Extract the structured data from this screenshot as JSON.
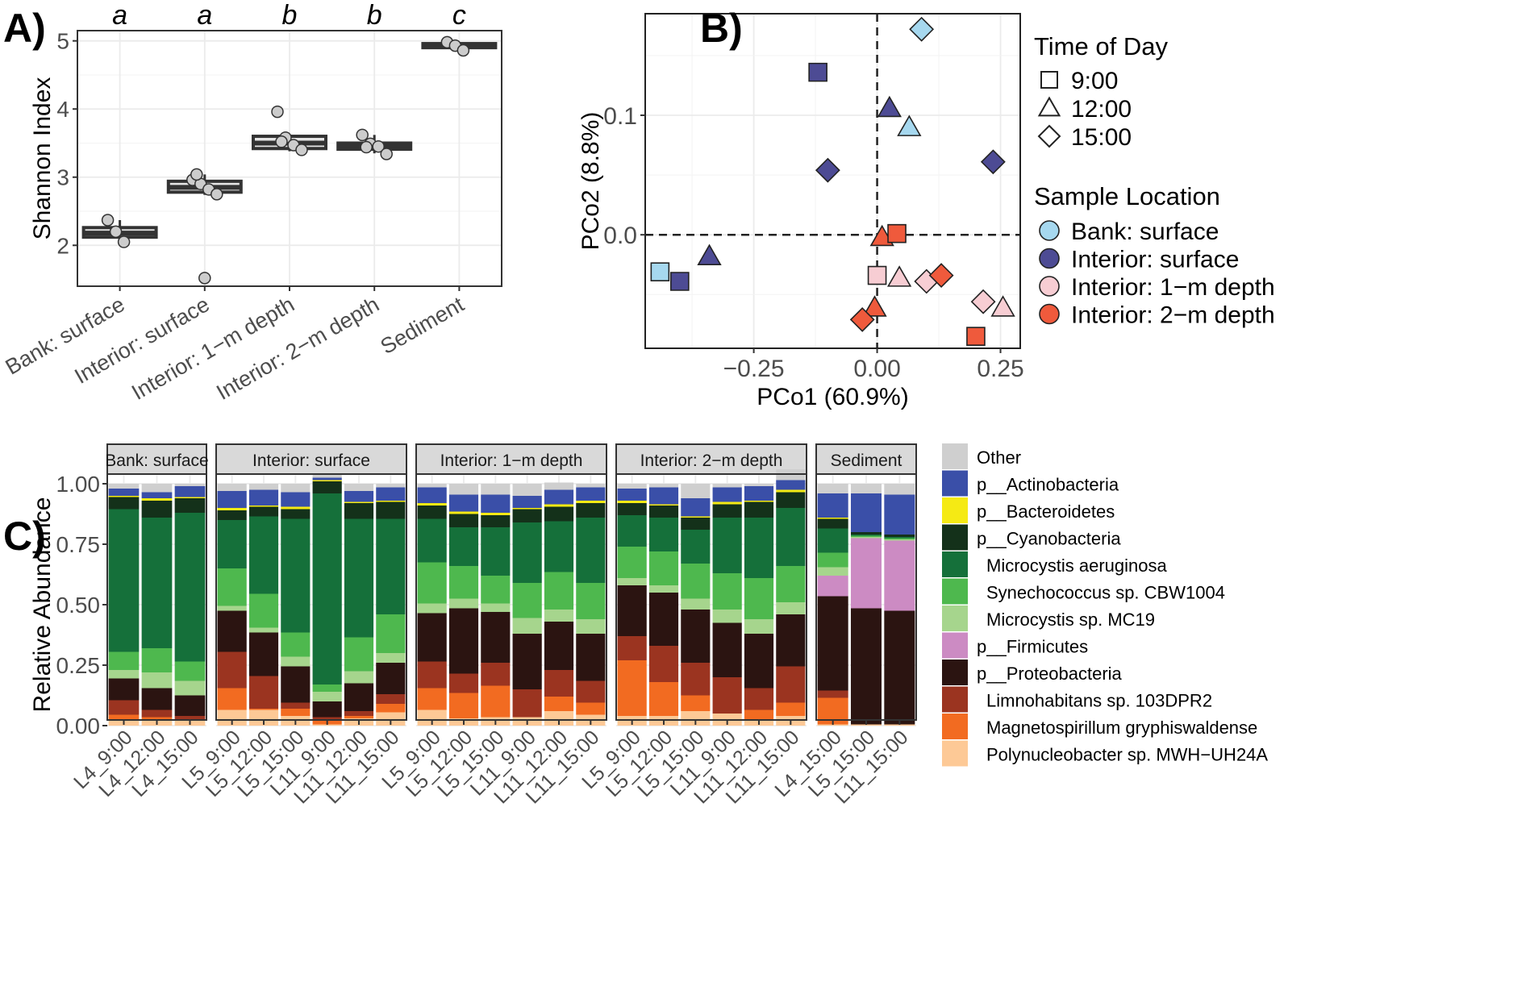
{
  "figure": {
    "panel_labels": [
      "A)",
      "B)",
      "C)"
    ]
  },
  "chart_data": [
    {
      "type": "box",
      "panel": "A)",
      "ylabel": "Shannon Index",
      "ylim": [
        1.4,
        5.15
      ],
      "yticks": [
        2,
        3,
        4,
        5
      ],
      "categories": [
        "Bank: surface",
        "Interior: surface",
        "Interior: 1−m depth",
        "Interior: 2−m depth",
        "Sediment"
      ],
      "letters": [
        "a",
        "a",
        "b",
        "b",
        "c"
      ],
      "boxes": [
        {
          "q1": 2.12,
          "median": 2.18,
          "q3": 2.26,
          "min": 2.05,
          "max": 2.37
        },
        {
          "q1": 2.78,
          "median": 2.85,
          "q3": 2.94,
          "min": 2.74,
          "max": 3.04
        },
        {
          "q1": 3.42,
          "median": 3.5,
          "q3": 3.6,
          "min": 3.38,
          "max": 3.62
        },
        {
          "q1": 3.41,
          "median": 3.46,
          "q3": 3.5,
          "min": 3.35,
          "max": 3.62
        },
        {
          "q1": 4.9,
          "median": 4.93,
          "q3": 4.96,
          "min": 4.88,
          "max": 4.98
        }
      ],
      "points": [
        [
          2.37,
          2.2,
          2.05
        ],
        [
          2.96,
          2.9,
          2.82,
          2.75,
          3.04,
          1.52
        ],
        [
          3.96,
          3.58,
          3.47,
          3.4,
          3.52
        ],
        [
          3.62,
          3.49,
          3.45,
          3.34,
          3.44
        ],
        [
          4.98,
          4.93,
          4.86
        ]
      ]
    },
    {
      "type": "scatter",
      "panel": "B)",
      "xlabel": "PCo1 (60.9%)",
      "ylabel": "PCo2 (8.8%)",
      "xlim": [
        -0.47,
        0.29
      ],
      "ylim": [
        -0.095,
        0.185
      ],
      "xticks": [
        -0.25,
        0.0,
        0.25
      ],
      "xtick_labels": [
        "−0.25",
        "0.00",
        "0.25"
      ],
      "yticks": [
        0.0,
        0.1
      ],
      "ytick_labels": [
        "0.0",
        "0.1"
      ],
      "legend_shape": {
        "title": "Time of Day",
        "entries": [
          {
            "label": "9:00",
            "shape": "square"
          },
          {
            "label": "12:00",
            "shape": "triangle"
          },
          {
            "label": "15:00",
            "shape": "diamond"
          }
        ]
      },
      "legend_color": {
        "title": "Sample Location",
        "entries": [
          {
            "label": "Bank: surface",
            "color": "#a6d8ef"
          },
          {
            "label": "Interior: surface",
            "color": "#4d4b94"
          },
          {
            "label": "Interior: 1−m depth",
            "color": "#f7cdd3"
          },
          {
            "label": "Interior: 2−m depth",
            "color": "#ef5a3c"
          }
        ]
      },
      "points": [
        {
          "x": 0.09,
          "y": 0.172,
          "shape": "diamond",
          "group": 0
        },
        {
          "x": -0.12,
          "y": 0.136,
          "shape": "square",
          "group": 1
        },
        {
          "x": 0.025,
          "y": 0.106,
          "shape": "triangle",
          "group": 1
        },
        {
          "x": 0.065,
          "y": 0.09,
          "shape": "triangle",
          "group": 0
        },
        {
          "x": -0.1,
          "y": 0.054,
          "shape": "diamond",
          "group": 1
        },
        {
          "x": 0.235,
          "y": 0.061,
          "shape": "diamond",
          "group": 1
        },
        {
          "x": 0.01,
          "y": -0.002,
          "shape": "triangle",
          "group": 3
        },
        {
          "x": 0.04,
          "y": 0.001,
          "shape": "square",
          "group": 3
        },
        {
          "x": -0.44,
          "y": -0.031,
          "shape": "square",
          "group": 0
        },
        {
          "x": -0.4,
          "y": -0.039,
          "shape": "square",
          "group": 1
        },
        {
          "x": -0.34,
          "y": -0.018,
          "shape": "triangle",
          "group": 1
        },
        {
          "x": 0.0,
          "y": -0.034,
          "shape": "square",
          "group": 2
        },
        {
          "x": 0.045,
          "y": -0.036,
          "shape": "triangle",
          "group": 2
        },
        {
          "x": 0.1,
          "y": -0.039,
          "shape": "diamond",
          "group": 2
        },
        {
          "x": 0.13,
          "y": -0.034,
          "shape": "diamond",
          "group": 3
        },
        {
          "x": 0.215,
          "y": -0.056,
          "shape": "diamond",
          "group": 2
        },
        {
          "x": 0.255,
          "y": -0.061,
          "shape": "triangle",
          "group": 2
        },
        {
          "x": -0.005,
          "y": -0.061,
          "shape": "triangle",
          "group": 3
        },
        {
          "x": -0.03,
          "y": -0.071,
          "shape": "diamond",
          "group": 3
        },
        {
          "x": 0.2,
          "y": -0.085,
          "shape": "square",
          "group": 3
        }
      ]
    },
    {
      "type": "stacked_bar",
      "panel": "C)",
      "ylabel": "Relative Abundance",
      "ylim": [
        0,
        1
      ],
      "yticks": [
        0,
        0.25,
        0.5,
        0.75,
        1.0
      ],
      "ytick_labels": [
        "0.00",
        "0.25",
        "0.50",
        "0.75",
        "1.00"
      ],
      "taxa": [
        {
          "name": "Polynucleobacter sp. MWH−UH24A",
          "color": "#fdc996",
          "indent": true
        },
        {
          "name": "Magnetospirillum gryphiswaldense",
          "color": "#f26b21",
          "indent": true
        },
        {
          "name": "Limnohabitans sp. 103DPR2",
          "color": "#9b3420",
          "indent": true
        },
        {
          "name": "p__Proteobacteria",
          "color": "#2b1411",
          "indent": false
        },
        {
          "name": "p__Firmicutes",
          "color": "#cc8bc3",
          "indent": false
        },
        {
          "name": "Microcystis sp. MC19",
          "color": "#a6d58d",
          "indent": true
        },
        {
          "name": "Synechococcus sp. CBW1004",
          "color": "#4eb84e",
          "indent": true
        },
        {
          "name": "Microcystis aeruginosa",
          "color": "#15703a",
          "indent": true
        },
        {
          "name": "p__Cyanobacteria",
          "color": "#14311a",
          "indent": false
        },
        {
          "name": "p__Bacteroidetes",
          "color": "#f5ea14",
          "indent": false
        },
        {
          "name": "p__Actinobacteria",
          "color": "#3a4fa8",
          "indent": false
        },
        {
          "name": "Other",
          "color": "#cfcfcf",
          "indent": false
        }
      ],
      "facets": [
        {
          "name": "Bank: surface",
          "samples": [
            {
              "label": "L4_9:00",
              "values": [
                0.025,
                0.02,
                0.06,
                0.09,
                0,
                0.035,
                0.075,
                0.59,
                0.05,
                0.005,
                0.03,
                0.02
              ]
            },
            {
              "label": "L4_12:00",
              "values": [
                0.02,
                0.015,
                0.03,
                0.09,
                0,
                0.065,
                0.1,
                0.54,
                0.07,
                0.01,
                0.025,
                0.035
              ]
            },
            {
              "label": "L4_15:00",
              "values": [
                0.02,
                0.005,
                0.015,
                0.085,
                0,
                0.06,
                0.08,
                0.615,
                0.06,
                0.005,
                0.045,
                0.01
              ]
            }
          ]
        },
        {
          "name": "Interior: surface",
          "samples": [
            {
              "label": "L5_9:00",
              "values": [
                0.065,
                0.09,
                0.15,
                0.17,
                0,
                0.02,
                0.155,
                0.2,
                0.04,
                0.01,
                0.07,
                0.03
              ]
            },
            {
              "label": "L5_12:00",
              "values": [
                0.065,
                0.005,
                0.135,
                0.18,
                0,
                0.02,
                0.14,
                0.32,
                0.04,
                0.005,
                0.065,
                0.025
              ]
            },
            {
              "label": "L5_15:00",
              "values": [
                0.04,
                0.03,
                0.025,
                0.15,
                0,
                0.04,
                0.1,
                0.47,
                0.04,
                0.01,
                0.06,
                0.035
              ]
            },
            {
              "label": "L11_9:00",
              "values": [
                0.005,
                0.015,
                0.015,
                0.065,
                0,
                0.04,
                0.03,
                0.79,
                0.05,
                0.005,
                0.01,
                0.015
              ]
            },
            {
              "label": "L11_12:00",
              "values": [
                0.03,
                0.01,
                0.02,
                0.115,
                0,
                0.05,
                0.14,
                0.49,
                0.065,
                0.005,
                0.045,
                0.03
              ]
            },
            {
              "label": "L11_15:00",
              "values": [
                0.055,
                0.035,
                0.04,
                0.13,
                0,
                0.04,
                0.16,
                0.395,
                0.07,
                0.005,
                0.055,
                0.015
              ]
            }
          ]
        },
        {
          "name": "Interior: 1−m depth",
          "samples": [
            {
              "label": "L5_9:00",
              "values": [
                0.065,
                0.09,
                0.11,
                0.2,
                0,
                0.04,
                0.17,
                0.18,
                0.055,
                0.01,
                0.065,
                0.015
              ]
            },
            {
              "label": "L5_12:00",
              "values": [
                0.03,
                0.105,
                0.08,
                0.27,
                0,
                0.04,
                0.135,
                0.16,
                0.055,
                0.01,
                0.07,
                0.045
              ]
            },
            {
              "label": "L5_15:00",
              "values": [
                0.035,
                0.13,
                0.095,
                0.21,
                0,
                0.035,
                0.115,
                0.2,
                0.05,
                0.01,
                0.075,
                0.045
              ]
            },
            {
              "label": "L11_9:00",
              "values": [
                0.035,
                0,
                0.115,
                0.23,
                0,
                0.065,
                0.145,
                0.25,
                0.055,
                0.005,
                0.05,
                0.05
              ]
            },
            {
              "label": "L11_12:00",
              "values": [
                0.06,
                0.06,
                0.11,
                0.2,
                0,
                0.05,
                0.155,
                0.21,
                0.06,
                0.01,
                0.06,
                0.03
              ]
            },
            {
              "label": "L11_15:00",
              "values": [
                0.045,
                0.05,
                0.09,
                0.195,
                0,
                0.06,
                0.15,
                0.27,
                0.06,
                0.01,
                0.055,
                0.015
              ]
            }
          ]
        },
        {
          "name": "Interior: 2−m depth",
          "samples": [
            {
              "label": "L5_9:00",
              "values": [
                0.04,
                0.23,
                0.1,
                0.21,
                0,
                0.03,
                0.13,
                0.13,
                0.05,
                0.01,
                0.05,
                0.02
              ]
            },
            {
              "label": "L5_12:00",
              "values": [
                0.04,
                0.14,
                0.15,
                0.22,
                0,
                0.03,
                0.14,
                0.14,
                0.05,
                0.005,
                0.07,
                0.015
              ]
            },
            {
              "label": "L5_15:00",
              "values": [
                0.06,
                0.065,
                0.135,
                0.22,
                0,
                0.045,
                0.145,
                0.14,
                0.05,
                0.005,
                0.075,
                0.06
              ]
            },
            {
              "label": "L11_9:00",
              "values": [
                0.05,
                0,
                0.15,
                0.225,
                0,
                0.055,
                0.15,
                0.23,
                0.055,
                0.01,
                0.06,
                0.015
              ]
            },
            {
              "label": "L11_12:00",
              "values": [
                0.025,
                0.04,
                0.09,
                0.225,
                0,
                0.06,
                0.17,
                0.25,
                0.065,
                0.005,
                0.06,
                0.01
              ]
            },
            {
              "label": "L11_15:00",
              "values": [
                0.04,
                0.055,
                0.15,
                0.215,
                0,
                0.05,
                0.15,
                0.24,
                0.065,
                0.01,
                0.04,
                0.045
              ]
            }
          ]
        },
        {
          "name": "Sediment",
          "samples": [
            {
              "label": "L4_15:00",
              "values": [
                0.005,
                0.11,
                0.03,
                0.39,
                0.085,
                0.035,
                0.06,
                0.1,
                0.04,
                0.005,
                0.1,
                0.04
              ]
            },
            {
              "label": "L5_15:00",
              "values": [
                0.005,
                0,
                0,
                0.48,
                0.29,
                0.005,
                0.005,
                0.005,
                0.01,
                0,
                0.16,
                0.04
              ]
            },
            {
              "label": "L11_15:00",
              "values": [
                0.005,
                0,
                0,
                0.47,
                0.29,
                0.005,
                0.005,
                0.005,
                0.01,
                0,
                0.165,
                0.045
              ]
            }
          ]
        }
      ]
    }
  ]
}
